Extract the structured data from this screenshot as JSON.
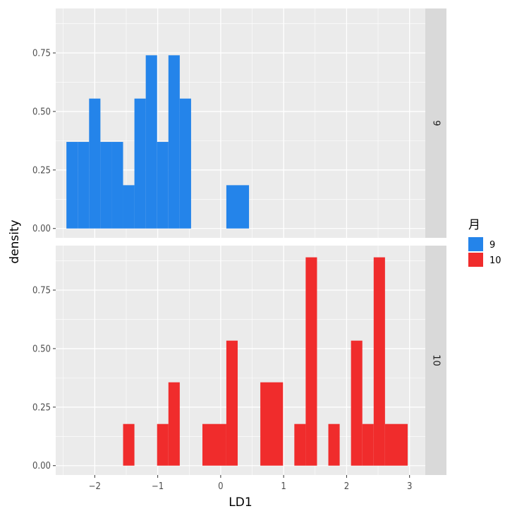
{
  "chart_data": {
    "type": "bar",
    "xlabel": "LD1",
    "ylabel": "density",
    "xlim": [
      -2.62,
      3.25
    ],
    "ylim": [
      -0.04,
      0.94
    ],
    "x_ticks": [
      -2,
      -1,
      0,
      1,
      2,
      3
    ],
    "x_tick_labels": [
      "−2",
      "−1",
      "0",
      "1",
      "2",
      "3"
    ],
    "y_ticks": [
      0,
      0.25,
      0.5,
      0.75
    ],
    "y_tick_labels": [
      "0.00",
      "0.25",
      "0.50",
      "0.75"
    ],
    "bin_width": 0.18,
    "grid": true,
    "legend": {
      "title": "月",
      "position": "right",
      "entries": [
        {
          "label": "9",
          "color": "#2484ea"
        },
        {
          "label": "10",
          "color": "#f02c2c"
        }
      ]
    },
    "facets": [
      {
        "strip_label": "9",
        "color": "#2484ea",
        "bins": [
          {
            "x0": -2.45,
            "x1": -2.27,
            "density": 0.37
          },
          {
            "x0": -2.27,
            "x1": -2.09,
            "density": 0.37
          },
          {
            "x0": -2.09,
            "x1": -1.91,
            "density": 0.555
          },
          {
            "x0": -1.91,
            "x1": -1.73,
            "density": 0.37
          },
          {
            "x0": -1.73,
            "x1": -1.55,
            "density": 0.37
          },
          {
            "x0": -1.55,
            "x1": -1.37,
            "density": 0.185
          },
          {
            "x0": -1.37,
            "x1": -1.19,
            "density": 0.555
          },
          {
            "x0": -1.19,
            "x1": -1.01,
            "density": 0.74
          },
          {
            "x0": -1.01,
            "x1": -0.83,
            "density": 0.37
          },
          {
            "x0": -0.83,
            "x1": -0.65,
            "density": 0.74
          },
          {
            "x0": -0.65,
            "x1": -0.47,
            "density": 0.555
          },
          {
            "x0": 0.09,
            "x1": 0.45,
            "density": 0.185
          }
        ]
      },
      {
        "strip_label": "10",
        "color": "#f02c2c",
        "bins": [
          {
            "x0": -1.55,
            "x1": -1.37,
            "density": 0.178
          },
          {
            "x0": -1.01,
            "x1": -0.83,
            "density": 0.178
          },
          {
            "x0": -0.83,
            "x1": -0.65,
            "density": 0.356
          },
          {
            "x0": -0.29,
            "x1": 0.09,
            "density": 0.178
          },
          {
            "x0": 0.09,
            "x1": 0.27,
            "density": 0.534
          },
          {
            "x0": 0.63,
            "x1": 0.99,
            "density": 0.356
          },
          {
            "x0": 1.17,
            "x1": 1.35,
            "density": 0.178
          },
          {
            "x0": 1.35,
            "x1": 1.53,
            "density": 0.89
          },
          {
            "x0": 1.71,
            "x1": 1.89,
            "density": 0.178
          },
          {
            "x0": 2.07,
            "x1": 2.25,
            "density": 0.534
          },
          {
            "x0": 2.25,
            "x1": 2.43,
            "density": 0.178
          },
          {
            "x0": 2.43,
            "x1": 2.61,
            "density": 0.89
          },
          {
            "x0": 2.61,
            "x1": 2.97,
            "density": 0.178
          }
        ]
      }
    ]
  }
}
